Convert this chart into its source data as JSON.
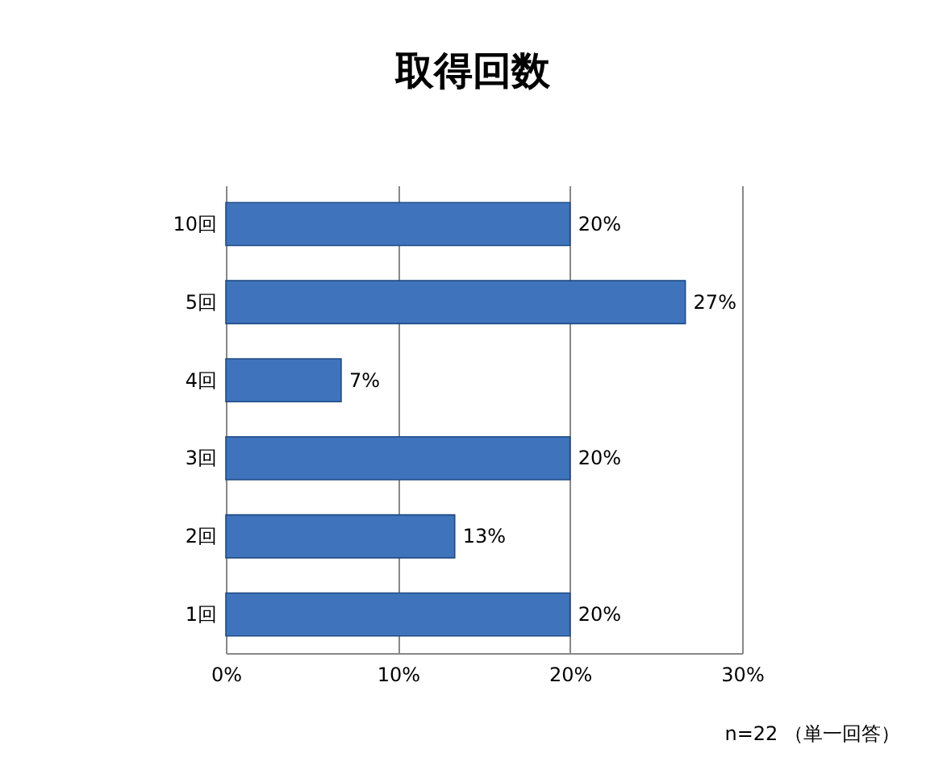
{
  "chart_data": {
    "type": "bar",
    "orientation": "horizontal",
    "title": "取得回数",
    "categories": [
      "10回",
      "5回",
      "4回",
      "3回",
      "2回",
      "1回"
    ],
    "values": [
      20,
      26.7,
      6.7,
      20,
      13.3,
      20
    ],
    "value_labels": [
      "20%",
      "27%",
      "7%",
      "20%",
      "13%",
      "20%"
    ],
    "color": "#3f74bd",
    "xlim": [
      0,
      30
    ],
    "xticks": [
      {
        "value": 0,
        "label": "0%"
      },
      {
        "value": 10,
        "label": "10%"
      },
      {
        "value": 20,
        "label": "20%"
      },
      {
        "value": 30,
        "label": "30%"
      }
    ],
    "grid": "x",
    "annotations": [
      "n=22 （単一回答）"
    ]
  }
}
